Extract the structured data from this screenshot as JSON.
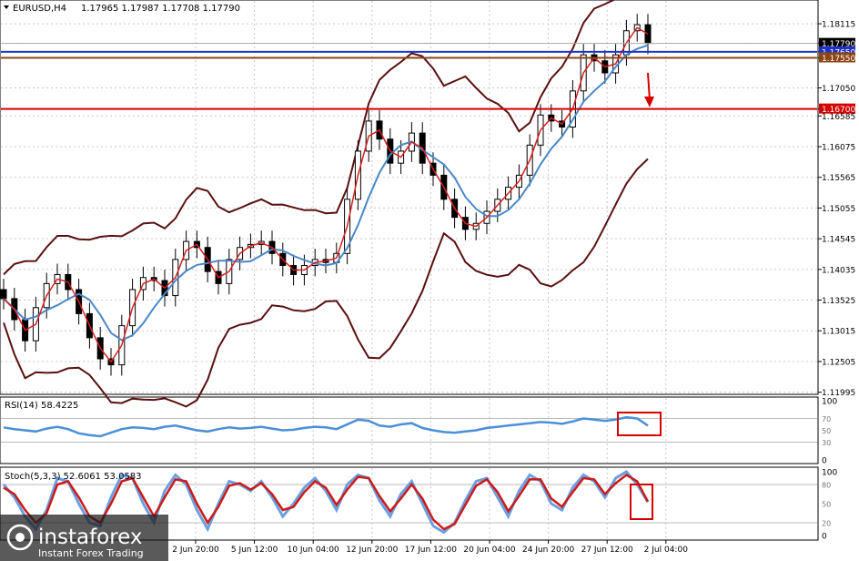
{
  "header": {
    "symbol": "EURUSD,H4",
    "ohlc": "1.17965 1.17987 1.17708 1.17790"
  },
  "colors": {
    "price_line_blue": "#1e32c8",
    "support_brown": "#8b4513",
    "support_red": "#d40000",
    "bollinger": "#5a1010",
    "ma_fast": "#d42020",
    "ma_slow": "#4a88c8",
    "rsi_line": "#4a90d9",
    "stoch_main": "#6a9fe0",
    "stoch_signal": "#cc1a1a"
  },
  "chart_data": [
    {
      "type": "candlestick",
      "title": "EURUSD,H4",
      "y_ticks": [
        "1.18115",
        "1.17790",
        "1.17650",
        "1.17550",
        "1.17050",
        "1.16700",
        "1.16585",
        "1.16075",
        "1.15565",
        "1.15055",
        "1.14545",
        "1.14035",
        "1.13525",
        "1.13015",
        "1.12505",
        "1.11995"
      ],
      "ylim": [
        1.1199,
        1.1845
      ],
      "x_ticks": [
        "2 Jun 20:00",
        "5 Jun 12:00",
        "10 Jun 04:00",
        "12 Jun 20:00",
        "17 Jun 12:00",
        "20 Jun 04:00",
        "24 Jun 20:00",
        "27 Jun 12:00",
        "2 Jul 04:00"
      ],
      "current_price": {
        "label": "1.17790",
        "value": 1.1779
      },
      "horizontal_lines": [
        {
          "label": "1.17650",
          "value": 1.1765,
          "color": "#1e32c8"
        },
        {
          "label": "1.17550",
          "value": 1.1755,
          "color": "#8b4513"
        },
        {
          "label": "1.16700",
          "value": 1.167,
          "color": "#d40000"
        }
      ],
      "close_series": [
        1.1355,
        1.132,
        1.1285,
        1.134,
        1.138,
        1.1395,
        1.137,
        1.133,
        1.129,
        1.1255,
        1.1245,
        1.131,
        1.137,
        1.139,
        1.1385,
        1.136,
        1.142,
        1.145,
        1.144,
        1.14,
        1.138,
        1.142,
        1.144,
        1.1445,
        1.145,
        1.143,
        1.141,
        1.1395,
        1.141,
        1.142,
        1.1415,
        1.143,
        1.152,
        1.16,
        1.165,
        1.162,
        1.158,
        1.16,
        1.163,
        1.158,
        1.156,
        1.152,
        1.149,
        1.147,
        1.148,
        1.15,
        1.152,
        1.154,
        1.156,
        1.161,
        1.166,
        1.165,
        1.164,
        1.17,
        1.176,
        1.175,
        1.173,
        1.176,
        1.18,
        1.181,
        1.1779
      ]
    },
    {
      "type": "line",
      "title": "RSI(14) 58.4225",
      "y_ticks": [
        "100",
        "70",
        "50",
        "30",
        "0"
      ],
      "ylim": [
        0,
        100
      ],
      "values": [
        55,
        52,
        50,
        48,
        53,
        56,
        52,
        45,
        42,
        40,
        46,
        52,
        55,
        54,
        52,
        56,
        58,
        54,
        50,
        48,
        52,
        55,
        53,
        54,
        56,
        53,
        50,
        51,
        54,
        56,
        55,
        52,
        60,
        68,
        66,
        58,
        56,
        60,
        62,
        54,
        50,
        47,
        46,
        48,
        50,
        54,
        56,
        58,
        60,
        62,
        64,
        63,
        61,
        65,
        70,
        68,
        66,
        68,
        72,
        70,
        58
      ]
    },
    {
      "type": "line",
      "title": "Stoch(5,3,3) 52.6061 53.0583",
      "y_ticks": [
        "100",
        "80",
        "50",
        "20",
        "0"
      ],
      "ylim": [
        0,
        100
      ],
      "series": [
        {
          "name": "main",
          "values": [
            80,
            60,
            30,
            10,
            40,
            90,
            85,
            50,
            20,
            15,
            60,
            95,
            90,
            50,
            20,
            70,
            95,
            80,
            40,
            10,
            50,
            85,
            80,
            70,
            85,
            60,
            30,
            50,
            75,
            90,
            70,
            40,
            80,
            95,
            90,
            55,
            30,
            65,
            85,
            50,
            15,
            5,
            20,
            55,
            85,
            90,
            60,
            30,
            70,
            95,
            85,
            50,
            40,
            75,
            95,
            85,
            60,
            90,
            100,
            80,
            52.6
          ]
        },
        {
          "name": "signal",
          "values": [
            75,
            65,
            40,
            20,
            35,
            80,
            85,
            60,
            30,
            20,
            50,
            85,
            90,
            60,
            30,
            60,
            88,
            85,
            50,
            20,
            45,
            78,
            82,
            72,
            82,
            65,
            40,
            45,
            68,
            85,
            75,
            48,
            72,
            92,
            90,
            62,
            38,
            58,
            80,
            58,
            25,
            10,
            18,
            48,
            78,
            88,
            68,
            38,
            62,
            88,
            88,
            58,
            45,
            68,
            90,
            88,
            65,
            82,
            95,
            85,
            53.1
          ]
        }
      ]
    }
  ],
  "annotations": {
    "down_arrow_color": "#d40000",
    "box_color": "#d40000"
  },
  "logo": {
    "name": "instaforex",
    "tagline": "Instant Forex Trading"
  }
}
